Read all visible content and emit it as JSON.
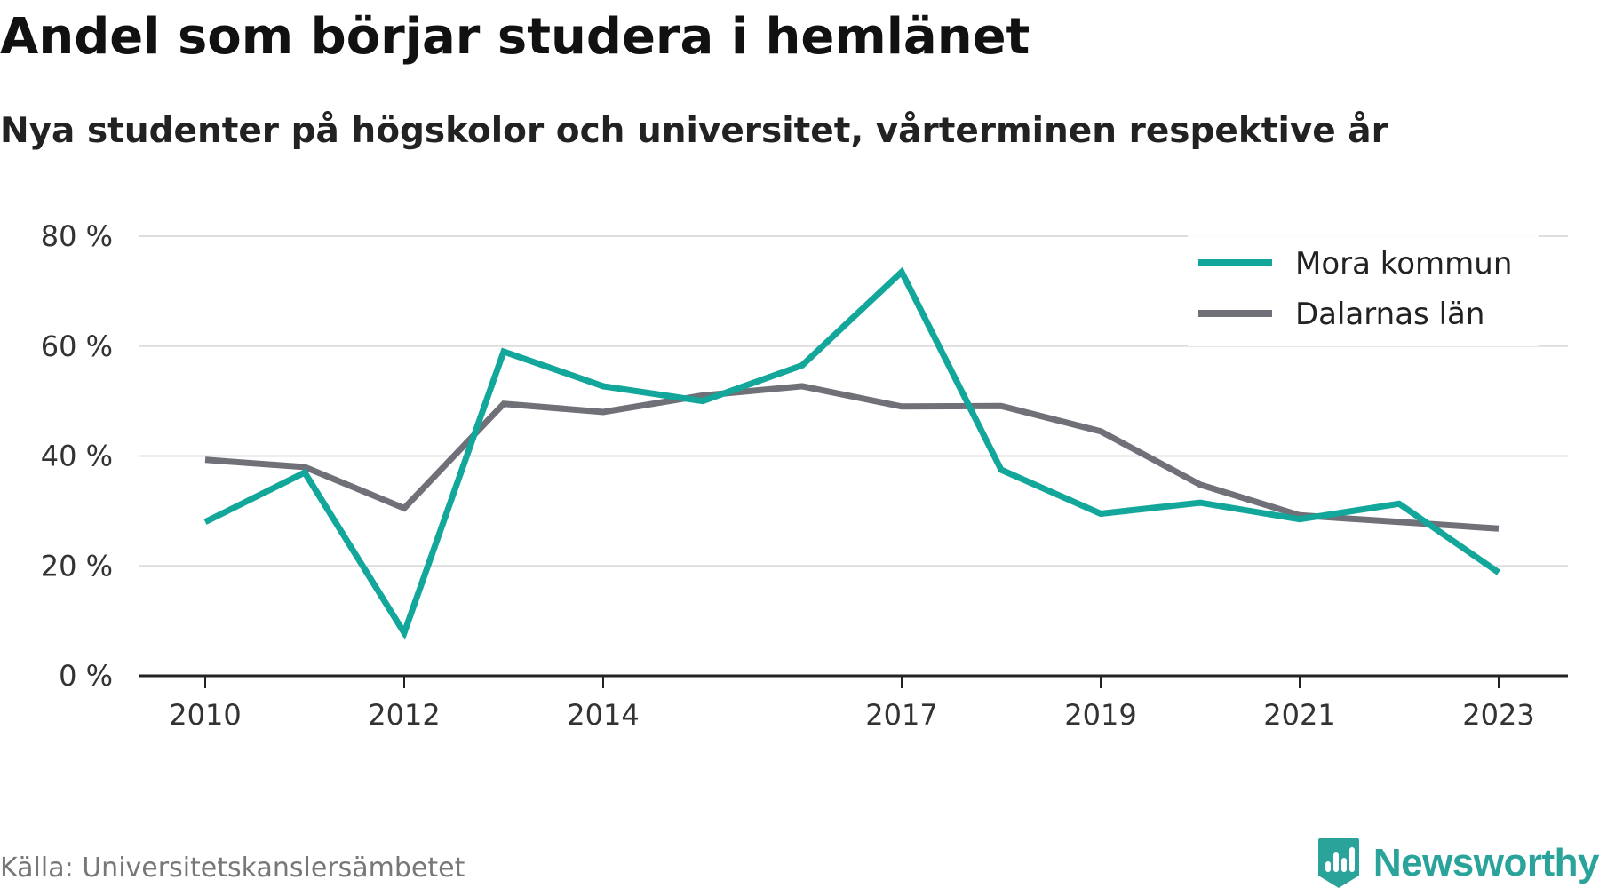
{
  "title": "Andel som börjar studera i hemlänet",
  "subtitle": "Nya studenter på högskolor och universitet, vårterminen respektive år",
  "source": "Källa: Universitetskanslersämbetet",
  "brand": "Newsworthy",
  "colors": {
    "mora": "#12a79a",
    "dalarna": "#707078",
    "grid": "#dddddd",
    "axis": "#222222",
    "brand": "#2aa39a"
  },
  "chart_data": {
    "type": "line",
    "x": [
      2010,
      2011,
      2012,
      2013,
      2014,
      2015,
      2016,
      2017,
      2018,
      2019,
      2020,
      2021,
      2022,
      2023
    ],
    "x_tick_values": [
      2010,
      2012,
      2014,
      2017,
      2019,
      2021,
      2023
    ],
    "x_tick_labels": [
      "2010",
      "2012",
      "2014",
      "2017",
      "2019",
      "2021",
      "2023"
    ],
    "y_ticks": [
      0,
      20,
      40,
      60,
      80
    ],
    "y_tick_labels": [
      "0 %",
      "20 %",
      "40 %",
      "60 %",
      "80 %"
    ],
    "ylim": [
      0,
      80
    ],
    "grid": true,
    "legend_position": "top-right",
    "series": [
      {
        "name": "Mora kommun",
        "color": "#12a79a",
        "values": [
          28,
          37,
          7.8,
          59,
          52.7,
          50,
          56.5,
          73.5,
          37.5,
          29.5,
          31.5,
          28.5,
          31.3,
          18.8
        ]
      },
      {
        "name": "Dalarnas län",
        "color": "#707078",
        "values": [
          39.3,
          38,
          30.5,
          49.5,
          48,
          51,
          52.7,
          49,
          49.1,
          44.5,
          34.8,
          29.2,
          28,
          26.8
        ]
      }
    ]
  }
}
